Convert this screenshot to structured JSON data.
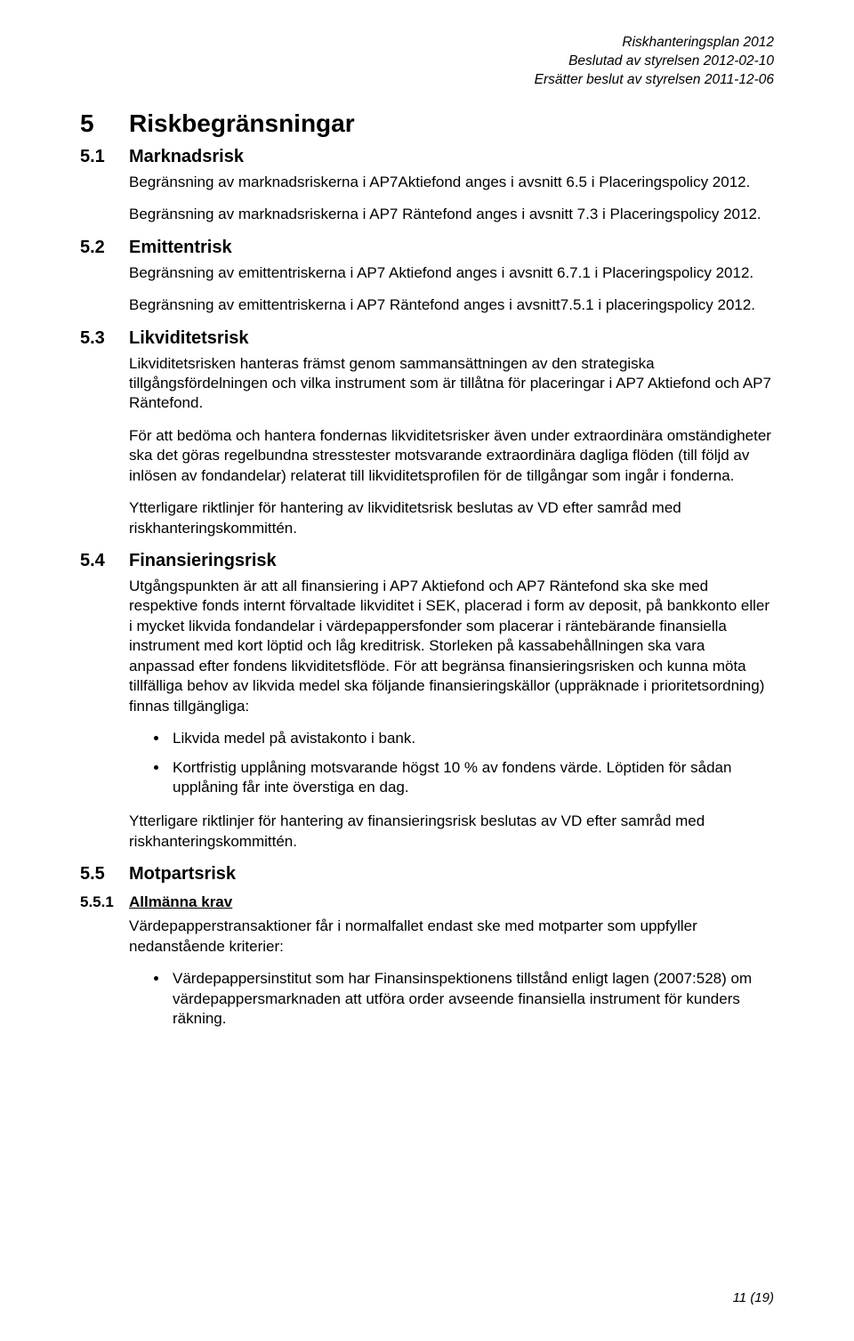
{
  "header": {
    "line1": "Riskhanteringsplan 2012",
    "line2": "Beslutad av styrelsen 2012-02-10",
    "line3": "Ersätter beslut av styrelsen 2011-12-06"
  },
  "h1": {
    "num": "5",
    "title": "Riskbegränsningar"
  },
  "sections": {
    "s51": {
      "num": "5.1",
      "title": "Marknadsrisk",
      "p1": "Begränsning av marknadsriskerna i AP7Aktiefond anges i avsnitt 6.5 i Placeringspolicy 2012.",
      "p2": "Begränsning av marknadsriskerna i AP7 Räntefond anges i avsnitt 7.3 i Placeringspolicy 2012."
    },
    "s52": {
      "num": "5.2",
      "title": "Emittentrisk",
      "p1": "Begränsning av emittentriskerna i AP7 Aktiefond anges i avsnitt 6.7.1 i Placeringspolicy 2012.",
      "p2": "Begränsning av emittentriskerna i AP7 Räntefond anges i avsnitt7.5.1 i placeringspolicy 2012."
    },
    "s53": {
      "num": "5.3",
      "title": "Likviditetsrisk",
      "p1": "Likviditetsrisken hanteras främst genom sammansättningen av den strategiska tillgångsfördelningen och vilka instrument som är tillåtna för placeringar i AP7 Aktiefond och AP7 Räntefond.",
      "p2": "För att bedöma och hantera fondernas likviditetsrisker även under extraordinära omständigheter ska det göras regelbundna stresstester motsvarande extraordinära dagliga flöden (till följd av inlösen av fondandelar) relaterat till likviditetsprofilen för de tillgångar som ingår i fonderna.",
      "p3": "Ytterligare riktlinjer för hantering av likviditetsrisk beslutas av VD efter samråd med riskhanteringskommittén."
    },
    "s54": {
      "num": "5.4",
      "title": "Finansieringsrisk",
      "p1": "Utgångspunkten är att all finansiering i AP7 Aktiefond och AP7 Räntefond ska ske med respektive fonds internt förvaltade likviditet i SEK, placerad i form av deposit, på bankkonto eller i mycket likvida fondandelar i värdepappersfonder som placerar i räntebärande finansiella instrument med kort löptid och låg kreditrisk. Storleken på kassabehållningen ska vara anpassad efter fondens likviditetsflöde. För att begränsa finansieringsrisken och kunna möta tillfälliga behov av likvida medel ska följande finansieringskällor (uppräknade i prioritetsordning) finnas tillgängliga:",
      "b1": "Likvida medel på avistakonto i bank.",
      "b2": "Kortfristig upplåning motsvarande högst 10 % av fondens värde. Löptiden för sådan upplåning får inte överstiga en dag.",
      "p2": "Ytterligare riktlinjer för hantering av finansieringsrisk beslutas av VD efter samråd med riskhanteringskommittén."
    },
    "s55": {
      "num": "5.5",
      "title": "Motpartsrisk"
    },
    "s551": {
      "num": "5.5.1",
      "title": "Allmänna krav",
      "p1": "Värdepapperstransaktioner får i normalfallet endast ske med motparter som uppfyller nedanstående kriterier:",
      "b1": "Värdepappersinstitut som har Finansinspektionens tillstånd enligt lagen (2007:528) om värdepappersmarknaden att utföra order avseende finansiella instrument för kunders räkning."
    }
  },
  "pageNumber": "11 (19)"
}
